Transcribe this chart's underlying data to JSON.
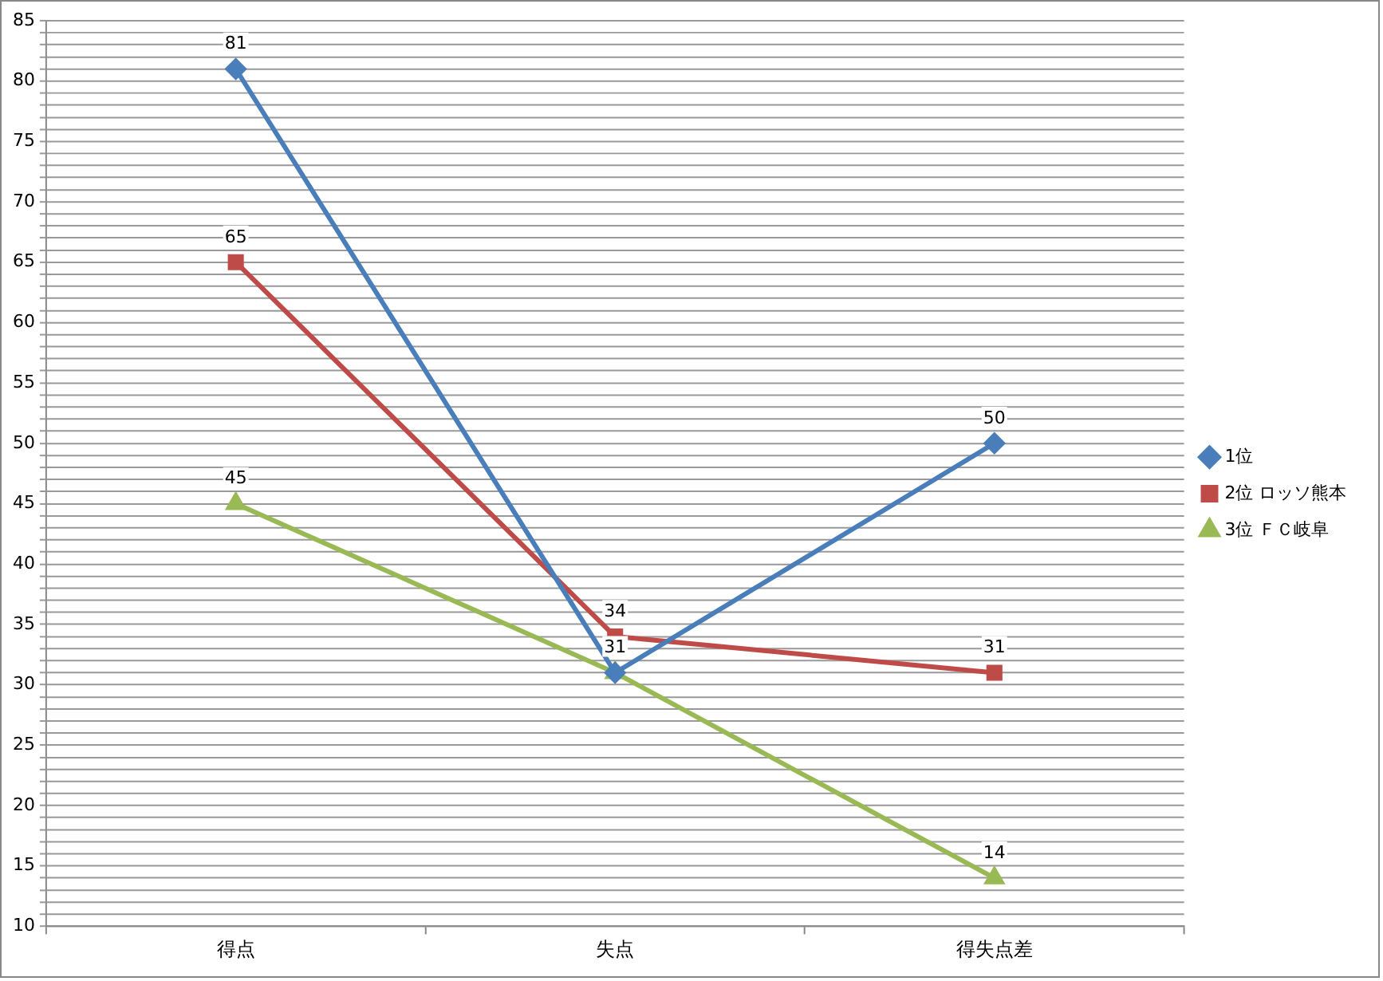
{
  "chart_data": {
    "type": "line",
    "categories": [
      "得点",
      "失点",
      "得失点差"
    ],
    "series": [
      {
        "name": "1位",
        "color": "#4a7ebb",
        "marker": "diamond",
        "values": [
          81,
          31,
          50
        ],
        "value_labels": [
          "81",
          null,
          "50"
        ]
      },
      {
        "name": "2位 ロッソ熊本",
        "color": "#be4b48",
        "marker": "square",
        "values": [
          65,
          34,
          31
        ],
        "value_labels": [
          "65",
          "34",
          "31"
        ]
      },
      {
        "name": "3位 ＦＣ岐阜",
        "color": "#98b954",
        "marker": "triangle",
        "values": [
          45,
          31,
          14
        ],
        "value_labels": [
          "45",
          "31",
          "14"
        ]
      }
    ],
    "ylim": [
      10,
      85
    ],
    "yticks": [
      10,
      {
        "value": 11,
        "label": null
      },
      {
        "value": 12,
        "label": null
      },
      {
        "value": 13,
        "label": null
      },
      {
        "value": 14,
        "label": null
      },
      15,
      {
        "value": 16,
        "label": null
      },
      {
        "value": 17,
        "label": null
      },
      {
        "value": 18,
        "label": null
      },
      {
        "value": 19,
        "label": null
      },
      20,
      {
        "value": 21,
        "label": null
      },
      {
        "value": 22,
        "label": null
      },
      {
        "value": 23,
        "label": null
      },
      {
        "value": 24,
        "label": null
      },
      25,
      {
        "value": 26,
        "label": null
      },
      {
        "value": 27,
        "label": null
      },
      {
        "value": 28,
        "label": null
      },
      {
        "value": 29,
        "label": null
      },
      30,
      {
        "value": 31,
        "label": null
      },
      {
        "value": 32,
        "label": null
      },
      {
        "value": 33,
        "label": null
      },
      {
        "value": 34,
        "label": null
      },
      35,
      {
        "value": 36,
        "label": null
      },
      {
        "value": 37,
        "label": null
      },
      {
        "value": 38,
        "label": null
      },
      {
        "value": 39,
        "label": null
      },
      40,
      {
        "value": 41,
        "label": null
      },
      {
        "value": 42,
        "label": null
      },
      {
        "value": 43,
        "label": null
      },
      {
        "value": 44,
        "label": null
      },
      45,
      {
        "value": 46,
        "label": null
      },
      {
        "value": 47,
        "label": null
      },
      {
        "value": 48,
        "label": null
      },
      {
        "value": 49,
        "label": null
      },
      50,
      {
        "value": 51,
        "label": null
      },
      {
        "value": 52,
        "label": null
      },
      {
        "value": 53,
        "label": null
      },
      {
        "value": 54,
        "label": null
      },
      55,
      {
        "value": 56,
        "label": null
      },
      {
        "value": 57,
        "label": null
      },
      {
        "value": 58,
        "label": null
      },
      {
        "value": 59,
        "label": null
      },
      60,
      {
        "value": 61,
        "label": null
      },
      {
        "value": 62,
        "label": null
      },
      {
        "value": 63,
        "label": null
      },
      {
        "value": 64,
        "label": null
      },
      65,
      {
        "value": 66,
        "label": null
      },
      {
        "value": 67,
        "label": null
      },
      {
        "value": 68,
        "label": null
      },
      {
        "value": 69,
        "label": null
      },
      70,
      {
        "value": 71,
        "label": null
      },
      {
        "value": 72,
        "label": null
      },
      {
        "value": 73,
        "label": null
      },
      {
        "value": 74,
        "label": null
      },
      75,
      {
        "value": 76,
        "label": null
      },
      {
        "value": 77,
        "label": null
      },
      {
        "value": 78,
        "label": null
      },
      {
        "value": 79,
        "label": null
      },
      80,
      {
        "value": 81,
        "label": null
      },
      {
        "value": 82,
        "label": null
      },
      {
        "value": 83,
        "label": null
      },
      {
        "value": 84,
        "label": null
      },
      85
    ],
    "grid": "y",
    "legend": "right",
    "line_style": "solid"
  }
}
